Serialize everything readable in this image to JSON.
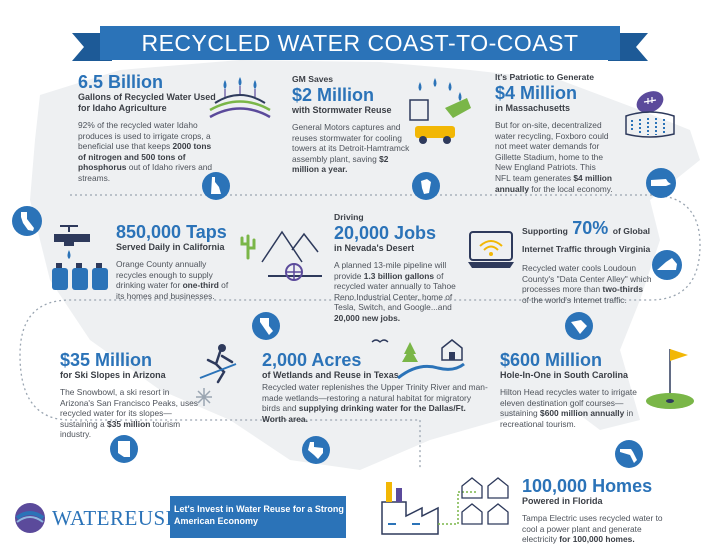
{
  "title": "RECYCLED WATER COAST-TO-COAST",
  "idaho": {
    "big": "6.5 Billion",
    "sub": "Gallons of Recycled Water Used for Idaho Agriculture",
    "body_1": "92% of the recycled water Idaho produces is used to irrigate crops, a beneficial use that keeps ",
    "body_bold": "2000 tons of nitrogen and 500 tons of phosphorus",
    "body_2": " out of Idaho rivers and streams."
  },
  "michigan": {
    "lead": "GM Saves",
    "big": "$2 Million",
    "sub": "with Stormwater Reuse",
    "body_1": "General Motors captures and reuses stormwater for cooling towers at its Detroit-Hamtramck assembly plant, saving ",
    "body_bold": "$2 million a year."
  },
  "massachusetts": {
    "lead": "It's Patriotic to Generate",
    "big": "$4 Million",
    "sub": "in Massachusetts",
    "body_1": "But for on-site, decentralized water recycling, Foxboro could not meet water demands for Gillette Stadium, home to the New England Patriots. This NFL team generates ",
    "body_bold": "$4 million annually",
    "body_2": " for the local economy."
  },
  "california": {
    "big": "850,000 Taps",
    "sub": "Served Daily in California",
    "body_1": "Orange County annually recycles enough to supply drinking water for ",
    "body_bold": "one-third",
    "body_2": " of its homes and businesses."
  },
  "nevada": {
    "lead": "Driving",
    "big": "20,000 Jobs",
    "sub": "in Nevada's Desert",
    "body_1": "A planned 13-mile pipeline will provide ",
    "body_bold": "1.3 billion gallons",
    "body_2": " of recycled water annually to Tahoe Reno Industrial Center, home of Tesla, Switch, and Google...and ",
    "body_bold_2": "20,000 new jobs."
  },
  "virginia": {
    "lead": "Supporting",
    "big": "70%",
    "lead_2": "of Global Internet Traffic through Virginia",
    "body_1": "Recycled water cools Loudoun County's \"Data Center Alley\" which processes more than ",
    "body_bold": "two-thirds",
    "body_2": " of the world's Internet traffic."
  },
  "arizona": {
    "big": "$35 Million",
    "sub": "for Ski Slopes in Arizona",
    "body_1": "The Snowbowl, a ski resort in Arizona's San Francisco Peaks, uses recycled water for its slopes—sustaining a ",
    "body_bold": "$35 million",
    "body_2": " tourism industry."
  },
  "texas": {
    "big": "2,000 Acres",
    "sub": "of Wetlands and Reuse in Texas",
    "body_1": "Recycled water replenishes the Upper Trinity River and man-made wetlands—restoring a natural habitat for migratory birds and ",
    "body_bold": "supplying drinking water for the Dallas/Ft. Worth area."
  },
  "south_carolina": {
    "big": "$600 Million",
    "sub": "Hole-In-One in South Carolina",
    "body_1": "Hilton Head recycles water to irrigate eleven destination golf courses—sustaining ",
    "body_bold": "$600 million annually",
    "body_2": " in recreational tourism."
  },
  "florida": {
    "big": "100,000 Homes",
    "sub": "Powered in Florida",
    "body_1": "Tampa Electric uses recycled water to cool a power plant and generate electricity ",
    "body_bold": "for 100,000 homes."
  },
  "footer": {
    "logo": "WATEREUSE",
    "message": "Let's Invest in Water Reuse for a Strong American Economy"
  },
  "colors": {
    "primary": "#2b73b8",
    "dark_blue": "#1d5a97",
    "map_gray": "#eef0f2",
    "text": "#4e535b",
    "icon_navy": "#2e3a5c",
    "icon_green": "#7ab648",
    "icon_purple": "#5b4a9b",
    "icon_yellow": "#f2b705"
  },
  "icons": [
    "idaho-state-icon",
    "crop-field-icon",
    "factory-water-icon",
    "michigan-state-icon",
    "stadium-icon",
    "football-icon",
    "massachusetts-state-icon",
    "california-state-icon",
    "faucet-icon",
    "water-jugs-icon",
    "desert-cactus-icon",
    "pipeline-valve-icon",
    "nevada-state-icon",
    "wifi-laptop-icon",
    "virginia-state-icon",
    "skier-icon",
    "snowflake-icon",
    "arizona-state-icon",
    "wetlands-house-icon",
    "bird-icon",
    "texas-state-icon",
    "golf-flag-icon",
    "south-carolina-state-icon",
    "power-plant-icon",
    "houses-icon",
    "florida-state-icon",
    "waterreuse-logo-icon"
  ]
}
